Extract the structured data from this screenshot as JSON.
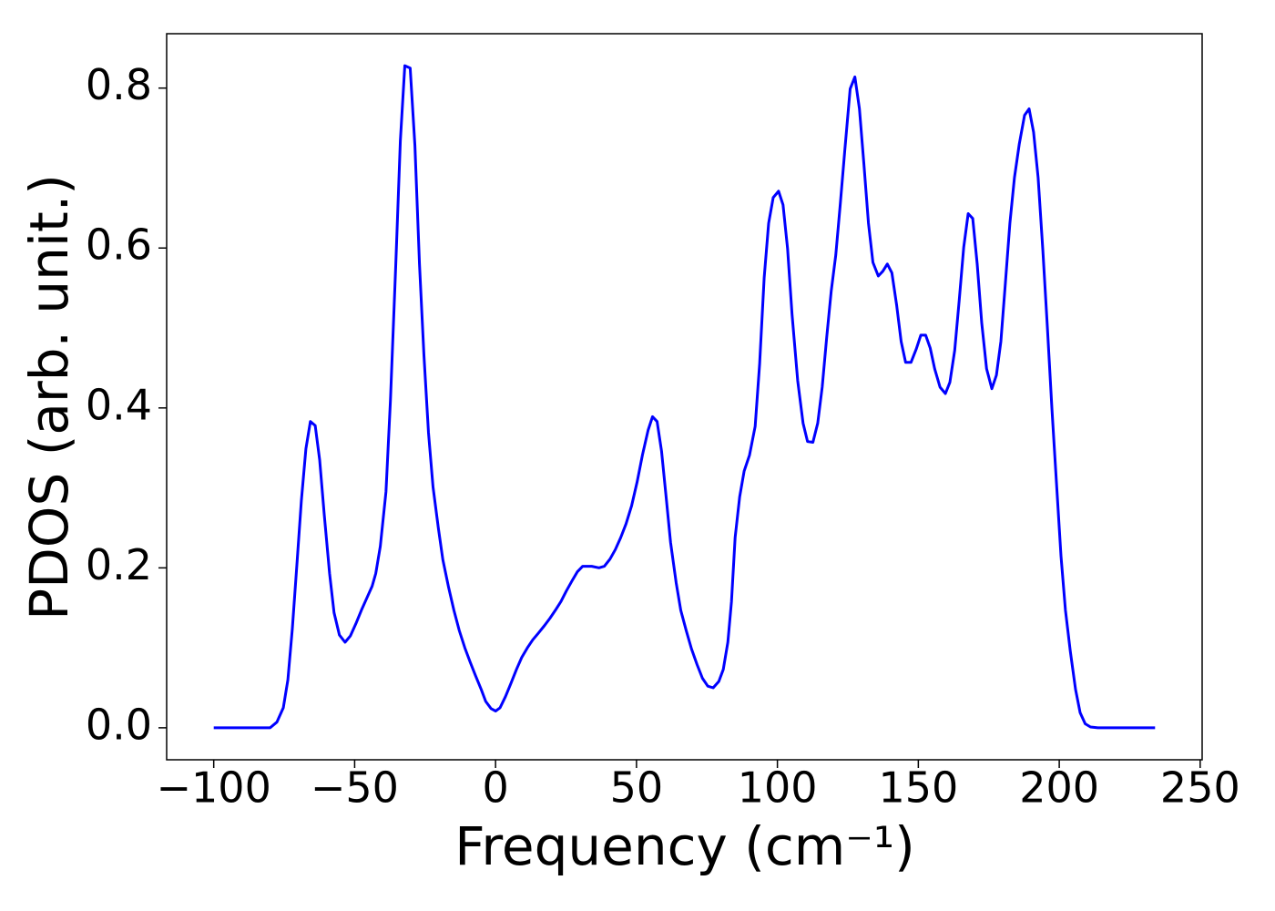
{
  "chart_data": {
    "type": "line",
    "xlabel": "Frequency (cm⁻¹)",
    "ylabel": "PDOS (arb. unit.)",
    "xlim": [
      -116.7,
      250.7
    ],
    "ylim": [
      -0.04,
      0.868
    ],
    "xticks": [
      {
        "value": -100,
        "label": "−100"
      },
      {
        "value": -50,
        "label": "−50"
      },
      0,
      50,
      100,
      150,
      200,
      250
    ],
    "yticks": [
      {
        "value": 0,
        "label": "0.0"
      },
      0.2,
      0.4,
      0.6,
      0.8
    ],
    "series": [
      {
        "color": "#0000ff",
        "x": [
          -100,
          -80,
          -77.6,
          -75.3,
          -73.7,
          -72.1,
          -70.5,
          -68.9,
          -67.3,
          -65.7,
          -64,
          -62.4,
          -60.8,
          -58.9,
          -57.3,
          -55.4,
          -53.4,
          -51.5,
          -49.6,
          -47.6,
          -45.7,
          -43.8,
          -42.5,
          -40.9,
          -38.9,
          -37.3,
          -35.4,
          -33.8,
          -32.2,
          -30.3,
          -28.6,
          -27,
          -25.4,
          -23.8,
          -22.2,
          -20.3,
          -18.7,
          -16.7,
          -14.8,
          -12.9,
          -10.9,
          -9,
          -7.1,
          -5.1,
          -3.5,
          -1.6,
          0,
          1.6,
          3.5,
          5.5,
          7.4,
          9.3,
          11.3,
          13.2,
          15.1,
          17.4,
          19.3,
          21.2,
          23.2,
          25.1,
          27,
          29,
          30.9,
          34.1,
          36.7,
          38.6,
          40.6,
          42.5,
          44.4,
          46.3,
          48.3,
          50.2,
          52.1,
          54.1,
          55.7,
          57.3,
          58.9,
          60.5,
          62.1,
          64.1,
          65.7,
          67.6,
          69.5,
          71.5,
          73.4,
          75.3,
          77.2,
          79.2,
          80.8,
          82.4,
          83.7,
          85,
          86.6,
          88.2,
          90.1,
          92.1,
          93.7,
          95.3,
          96.9,
          98.5,
          100.4,
          102,
          103.6,
          105.2,
          107.2,
          109.1,
          110.7,
          112.6,
          114.3,
          115.9,
          117.5,
          119.1,
          120.7,
          122.3,
          123.9,
          125.8,
          127.5,
          129.1,
          130.7,
          132.3,
          133.9,
          135.8,
          137.4,
          139,
          140.6,
          142.3,
          143.9,
          145.5,
          147.4,
          149.3,
          150.9,
          152.6,
          154.2,
          155.8,
          157.7,
          159.6,
          161.2,
          162.9,
          164.5,
          166.1,
          167.7,
          169.3,
          170.9,
          172.5,
          174.2,
          176.1,
          177.7,
          179.3,
          180.9,
          182.5,
          184.1,
          185.8,
          187.7,
          189.3,
          190.9,
          192.5,
          194.2,
          195.8,
          197.4,
          199,
          200.6,
          202.2,
          203.9,
          205.8,
          207.4,
          209.2,
          211.1,
          213.7,
          234
        ],
        "values": [
          0,
          0,
          0.007,
          0.025,
          0.06,
          0.124,
          0.204,
          0.284,
          0.349,
          0.383,
          0.378,
          0.335,
          0.267,
          0.193,
          0.144,
          0.116,
          0.107,
          0.115,
          0.13,
          0.147,
          0.162,
          0.177,
          0.193,
          0.227,
          0.295,
          0.409,
          0.58,
          0.734,
          0.828,
          0.825,
          0.728,
          0.58,
          0.466,
          0.369,
          0.301,
          0.25,
          0.21,
          0.176,
          0.147,
          0.122,
          0.1,
          0.082,
          0.065,
          0.048,
          0.033,
          0.024,
          0.021,
          0.025,
          0.039,
          0.056,
          0.073,
          0.088,
          0.1,
          0.11,
          0.118,
          0.128,
          0.137,
          0.147,
          0.158,
          0.171,
          0.183,
          0.195,
          0.202,
          0.202,
          0.2,
          0.202,
          0.211,
          0.223,
          0.238,
          0.255,
          0.278,
          0.307,
          0.341,
          0.372,
          0.389,
          0.383,
          0.346,
          0.289,
          0.232,
          0.181,
          0.147,
          0.122,
          0.099,
          0.079,
          0.062,
          0.052,
          0.05,
          0.058,
          0.073,
          0.107,
          0.158,
          0.238,
          0.289,
          0.321,
          0.341,
          0.377,
          0.455,
          0.563,
          0.631,
          0.663,
          0.671,
          0.654,
          0.599,
          0.517,
          0.434,
          0.381,
          0.358,
          0.357,
          0.381,
          0.426,
          0.489,
          0.546,
          0.591,
          0.654,
          0.722,
          0.799,
          0.814,
          0.774,
          0.705,
          0.631,
          0.582,
          0.565,
          0.571,
          0.58,
          0.569,
          0.529,
          0.483,
          0.457,
          0.457,
          0.474,
          0.491,
          0.491,
          0.475,
          0.449,
          0.426,
          0.418,
          0.432,
          0.472,
          0.534,
          0.601,
          0.643,
          0.637,
          0.58,
          0.506,
          0.449,
          0.424,
          0.441,
          0.483,
          0.557,
          0.631,
          0.688,
          0.73,
          0.766,
          0.774,
          0.745,
          0.688,
          0.597,
          0.5,
          0.398,
          0.307,
          0.215,
          0.147,
          0.096,
          0.048,
          0.019,
          0.005,
          0.001,
          0,
          0
        ]
      }
    ]
  }
}
